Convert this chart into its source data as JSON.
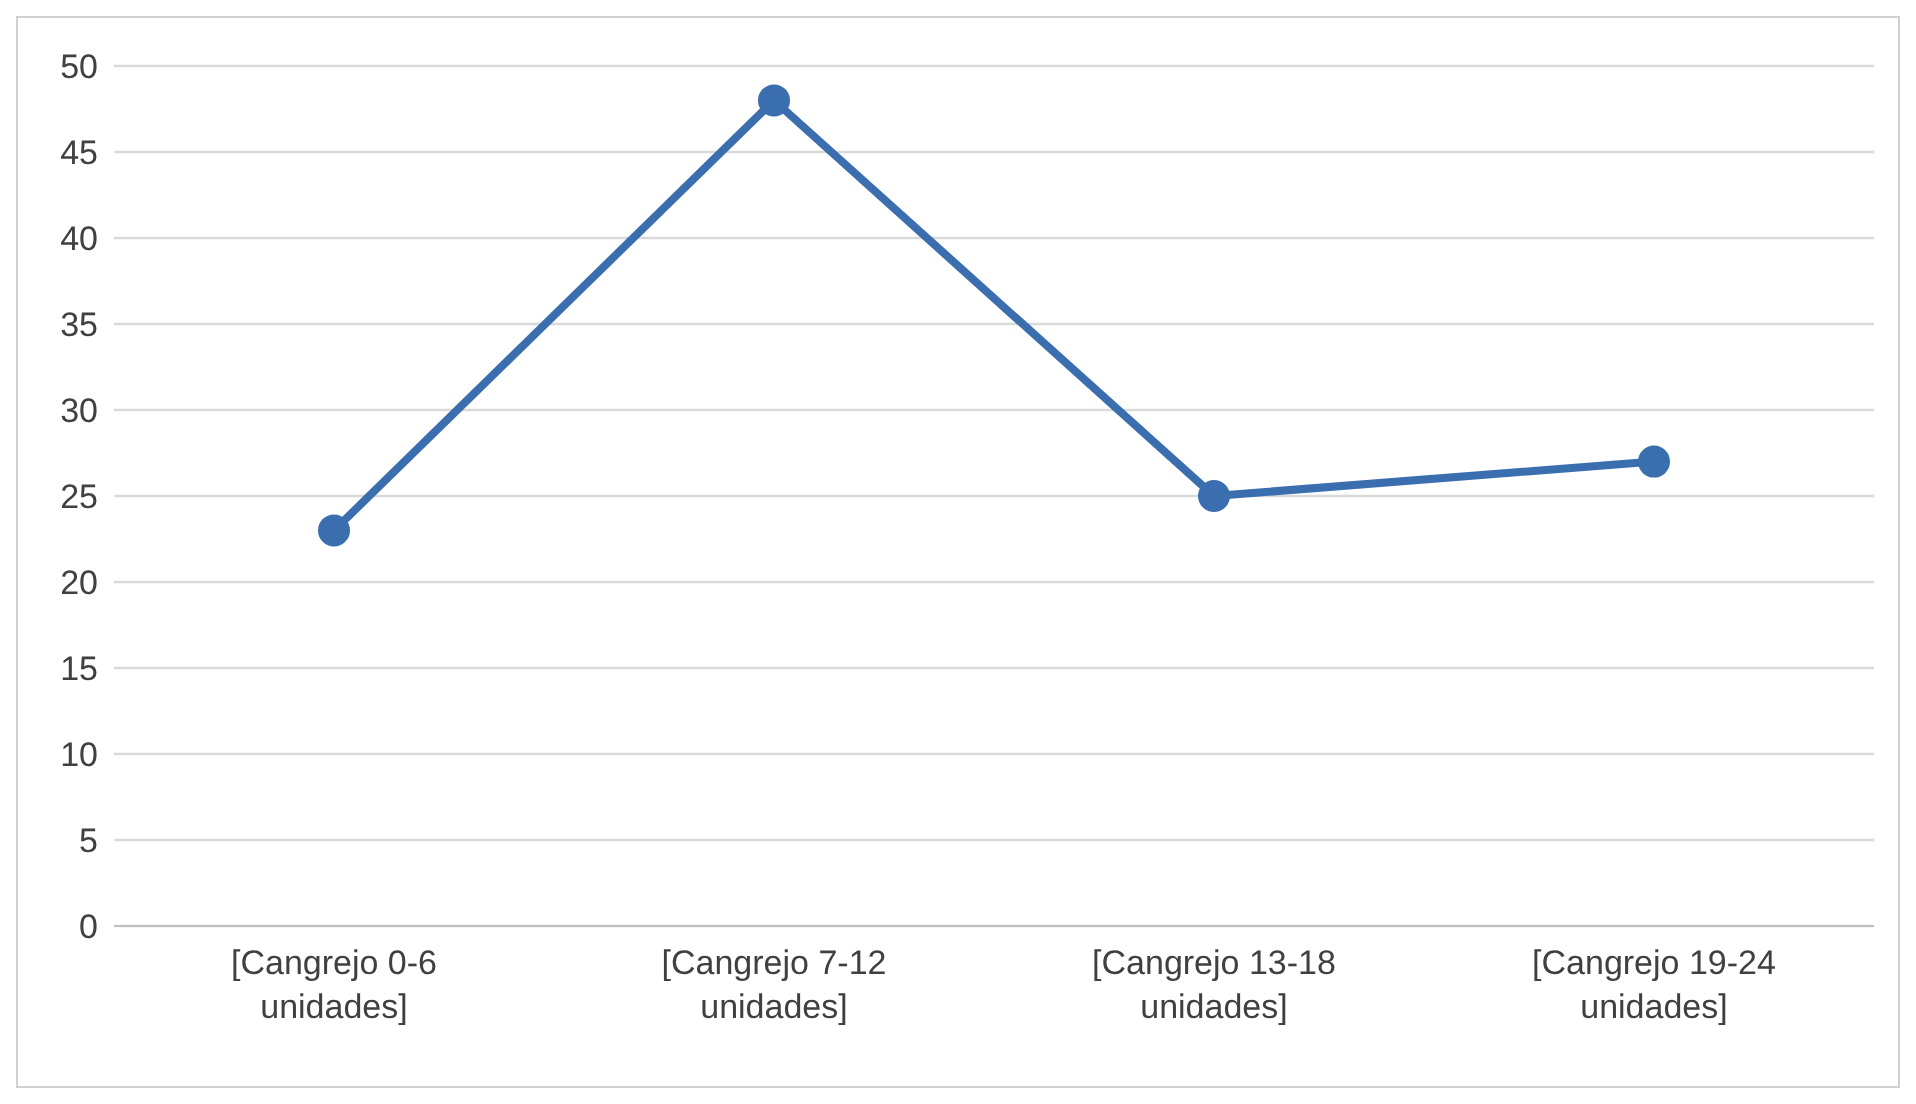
{
  "chart_data": {
    "type": "line",
    "categories": [
      "[Cangrejo 0-6 unidades]",
      "[Cangrejo 7-12 unidades]",
      "[Cangrejo 13-18 unidades]",
      "[Cangrejo  19-24 unidades]"
    ],
    "series": [
      {
        "color": "#3a6eae",
        "values": [
          23,
          48,
          25,
          27
        ]
      }
    ],
    "ylim": [
      0,
      50
    ],
    "yticks": [
      0,
      5,
      10,
      15,
      20,
      25,
      30,
      35,
      40,
      45,
      50
    ],
    "grid": "y",
    "marker": "circle",
    "line_style": "solid"
  }
}
